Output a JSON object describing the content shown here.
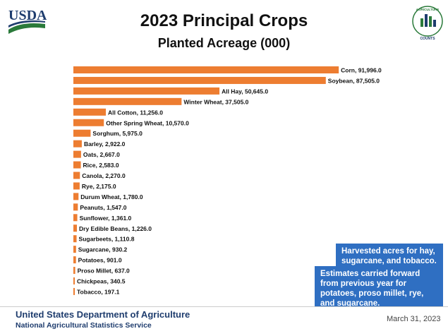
{
  "branding": {
    "usda_logo_text": "USDA",
    "ag_counts_logo_top": "AGRICULTURE",
    "ag_counts_logo_bottom": "COUNTS",
    "brand_blue": "#1f3d6e",
    "brand_green": "#2a7a3a"
  },
  "colors": {
    "bar": "#ed7d31",
    "note_background": "#2f6fc2"
  },
  "chart_data": {
    "type": "bar",
    "orientation": "horizontal",
    "title": "2023 Principal Crops",
    "subtitle": "Planted Acreage (000)",
    "xlim": [
      0,
      95000
    ],
    "grid": false,
    "categories": [
      "Corn",
      "Soybean",
      "All Hay",
      "Winter Wheat",
      "All Cotton",
      "Other Spring Wheat",
      "Sorghum",
      "Barley",
      "Oats",
      "Rice",
      "Canola",
      "Rye",
      "Durum Wheat",
      "Peanuts",
      "Sunflower",
      "Dry Edible Beans",
      "Sugarbeets",
      "Sugarcane",
      "Potatoes",
      "Proso Millet",
      "Chickpeas",
      "Tobacco"
    ],
    "values": [
      91996.0,
      87505.0,
      50645.0,
      37505.0,
      11256.0,
      10570.0,
      5975.0,
      2922.0,
      2667.0,
      2583.0,
      2270.0,
      2175.0,
      1780.0,
      1547.0,
      1361.0,
      1226.0,
      1110.8,
      930.2,
      901.0,
      637.0,
      340.5,
      197.1
    ],
    "labels": [
      "Corn, 91,996.0",
      "Soybean, 87,505.0",
      "All Hay, 50,645.0",
      "Winter Wheat, 37,505.0",
      "All Cotton,  11,256.0",
      "Other Spring Wheat, 10,570.0",
      "Sorghum, 5,975.0",
      "Barley, 2,922.0",
      "Oats, 2,667.0",
      "Rice, 2,583.0",
      "Canola, 2,270.0",
      "Rye, 2,175.0",
      "Durum Wheat, 1,780.0",
      "Peanuts, 1,547.0",
      "Sunflower, 1,361.0",
      "Dry Edible Beans, 1,226.0",
      "Sugarbeets, 1,110.8",
      "Sugarcane, 930.2",
      "Potatoes, 901.0",
      "Proso Millet, 637.0",
      "Chickpeas, 340.5",
      "Tobacco, 197.1"
    ]
  },
  "notes": {
    "harvested": "Harvested acres for hay, sugarcane, and tobacco.",
    "carried_forward": "Estimates carried forward from previous year for potatoes, proso millet, rye, and sugarcane."
  },
  "footer": {
    "agency": "United States Department of Agriculture",
    "service": "National Agricultural Statistics Service",
    "date": "March 31, 2023"
  }
}
